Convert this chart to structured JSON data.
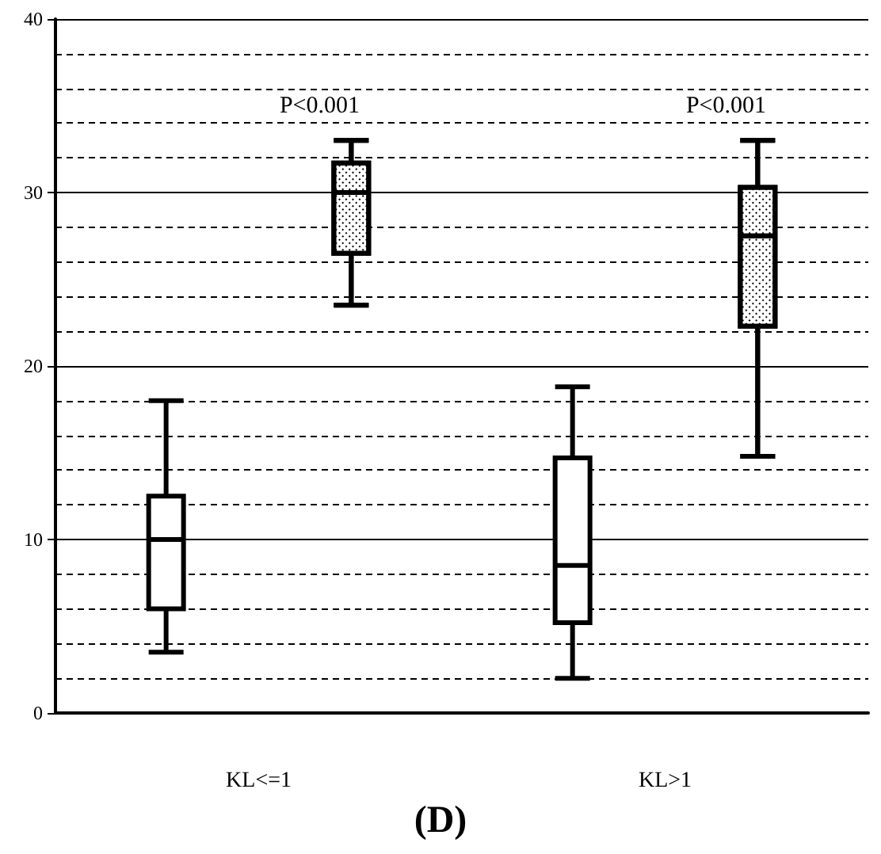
{
  "chart_data": {
    "type": "box",
    "title": "(D)",
    "categories": [
      "KL<=1",
      "KL>1"
    ],
    "series": [
      {
        "color": "#000000",
        "boxes": [
          {
            "low": 3.5,
            "q1": 6,
            "median": 10,
            "q3": 12.5,
            "high": 18
          },
          {
            "low": 2,
            "q1": 5.2,
            "median": 8.5,
            "q3": 14.7,
            "high": 18.8
          }
        ]
      },
      {
        "color": "#000000",
        "boxes": [
          {
            "low": 23.5,
            "q1": 26.5,
            "median": 30,
            "q3": 31.7,
            "high": 33
          },
          {
            "low": 14.8,
            "q1": 22.3,
            "median": 27.5,
            "q3": 30.3,
            "high": 33
          }
        ]
      }
    ],
    "ylim": [
      0,
      40
    ],
    "yticks": [
      0,
      10,
      20,
      30,
      40
    ],
    "grid": true,
    "annotations": [
      "P<0.001",
      "P<0.001"
    ]
  }
}
